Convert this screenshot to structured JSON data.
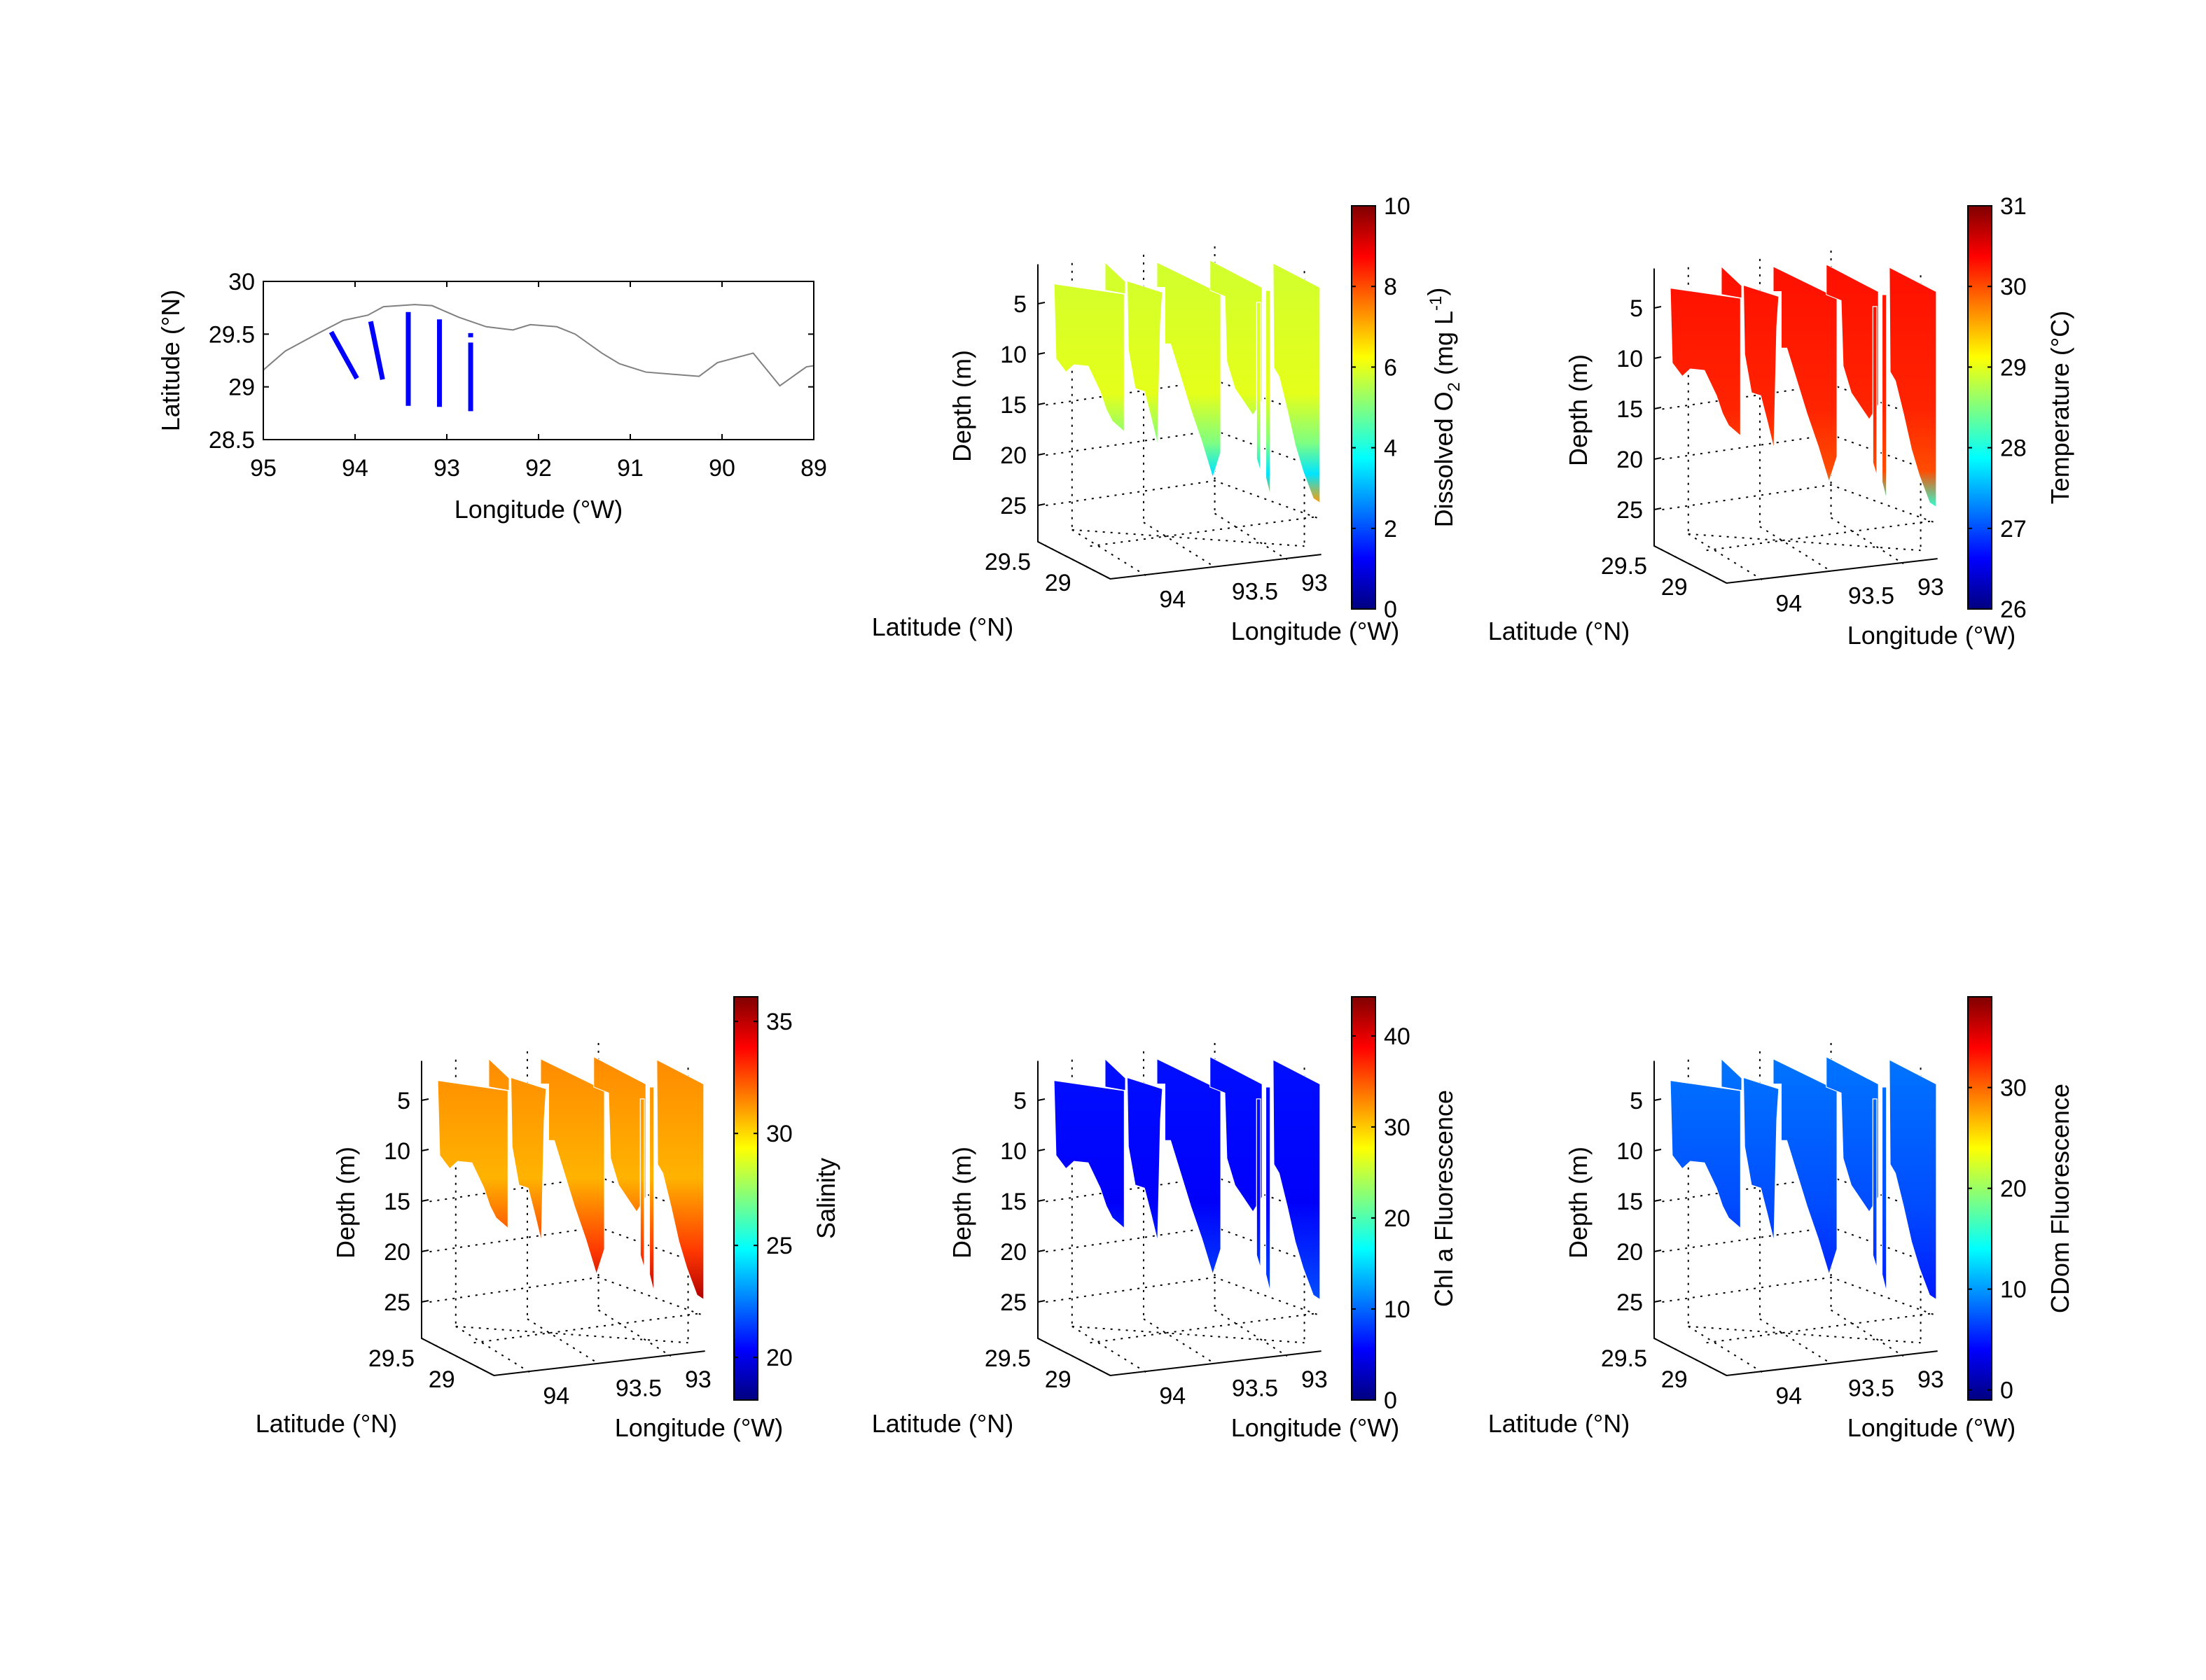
{
  "chart_data": [
    {
      "type": "map",
      "xlabel": "Longitude (°W)",
      "ylabel": "Latitude (°N)",
      "xlim": [
        95,
        89
      ],
      "ylim": [
        28.5,
        30
      ],
      "xticks": [
        "95",
        "94",
        "93",
        "92",
        "91",
        "90",
        "89"
      ],
      "yticks": [
        "28.5",
        "29",
        "29.5",
        "30"
      ],
      "coastline_color": "#808080",
      "transect_color": "#0000ff",
      "coastline": [
        [
          95.0,
          29.16
        ],
        [
          94.76,
          29.34
        ],
        [
          94.42,
          29.5
        ],
        [
          94.13,
          29.63
        ],
        [
          93.86,
          29.68
        ],
        [
          93.69,
          29.76
        ],
        [
          93.35,
          29.78
        ],
        [
          93.16,
          29.77
        ],
        [
          92.87,
          29.66
        ],
        [
          92.57,
          29.57
        ],
        [
          92.28,
          29.54
        ],
        [
          92.09,
          29.59
        ],
        [
          91.8,
          29.57
        ],
        [
          91.6,
          29.5
        ],
        [
          91.31,
          29.32
        ],
        [
          91.12,
          29.22
        ],
        [
          90.83,
          29.14
        ],
        [
          90.54,
          29.12
        ],
        [
          90.25,
          29.1
        ],
        [
          90.05,
          29.23
        ],
        [
          89.66,
          29.32
        ],
        [
          89.37,
          29.01
        ],
        [
          89.08,
          29.19
        ],
        [
          89.0,
          29.2
        ]
      ],
      "transects": [
        [
          [
            94.26,
            29.52
          ],
          [
            93.98,
            29.08
          ]
        ],
        [
          [
            93.83,
            29.62
          ],
          [
            93.7,
            29.07
          ]
        ],
        [
          [
            93.42,
            29.71
          ],
          [
            93.42,
            28.82
          ]
        ],
        [
          [
            93.08,
            29.64
          ],
          [
            93.08,
            28.81
          ]
        ],
        [
          [
            92.74,
            29.51
          ],
          [
            92.74,
            29.47
          ]
        ],
        [
          [
            92.74,
            29.42
          ],
          [
            92.74,
            28.77
          ]
        ]
      ]
    },
    {
      "type": "3d-curtain",
      "variable": "o2",
      "xlabel": "Longitude (°W)",
      "ylabel": "Latitude (°N)",
      "zlabel": "Depth (m)",
      "xticks": [
        "94",
        "93.5",
        "93"
      ],
      "yticks": [
        "29.5",
        "29"
      ],
      "zticks": [
        "5",
        "10",
        "15",
        "20",
        "25"
      ],
      "colorbar": {
        "label_parts": [
          "Dissolved O",
          "2",
          " (mg L",
          "-1",
          ")"
        ],
        "colormap": "jet",
        "range": [
          0,
          10
        ],
        "ticks": [
          "0",
          "2",
          "4",
          "6",
          "8",
          "10"
        ],
        "tick_values": [
          0,
          2,
          4,
          6,
          8,
          10
        ]
      }
    },
    {
      "type": "3d-curtain",
      "variable": "temperature",
      "xlabel": "Longitude (°W)",
      "ylabel": "Latitude (°N)",
      "zlabel": "Depth (m)",
      "xticks": [
        "94",
        "93.5",
        "93"
      ],
      "yticks": [
        "29.5",
        "29"
      ],
      "zticks": [
        "5",
        "10",
        "15",
        "20",
        "25"
      ],
      "colorbar": {
        "label": "Temperature (°C)",
        "colormap": "jet",
        "range": [
          26,
          31
        ],
        "ticks": [
          "26",
          "27",
          "28",
          "29",
          "30",
          "31"
        ],
        "tick_values": [
          26,
          27,
          28,
          29,
          30,
          31
        ]
      }
    },
    {
      "type": "3d-curtain",
      "variable": "salinity",
      "xlabel": "Longitude (°W)",
      "ylabel": "Latitude (°N)",
      "zlabel": "Depth (m)",
      "xticks": [
        "94",
        "93.5",
        "93"
      ],
      "yticks": [
        "29.5",
        "29"
      ],
      "zticks": [
        "5",
        "10",
        "15",
        "20",
        "25"
      ],
      "colorbar": {
        "label": "Salinity",
        "colormap": "jet",
        "range": [
          18.1,
          36.1
        ],
        "ticks": [
          "20",
          "25",
          "30",
          "35"
        ],
        "tick_values": [
          20,
          25,
          30,
          35
        ]
      }
    },
    {
      "type": "3d-curtain",
      "variable": "chl",
      "xlabel": "Longitude (°W)",
      "ylabel": "Latitude (°N)",
      "zlabel": "Depth (m)",
      "xticks": [
        "94",
        "93.5",
        "93"
      ],
      "yticks": [
        "29.5",
        "29"
      ],
      "zticks": [
        "5",
        "10",
        "15",
        "20",
        "25"
      ],
      "colorbar": {
        "label": "Chl a Fluorescence",
        "colormap": "jet",
        "range": [
          0,
          44.3
        ],
        "ticks": [
          "0",
          "10",
          "20",
          "30",
          "40"
        ],
        "tick_values": [
          0,
          10,
          20,
          30,
          40
        ]
      }
    },
    {
      "type": "3d-curtain",
      "variable": "cdom",
      "xlabel": "Longitude (°W)",
      "ylabel": "Latitude (°N)",
      "zlabel": "Depth (m)",
      "xticks": [
        "94",
        "93.5",
        "93"
      ],
      "yticks": [
        "29.5",
        "29"
      ],
      "zticks": [
        "5",
        "10",
        "15",
        "20",
        "25"
      ],
      "colorbar": {
        "label": "CDom Fluorescence",
        "colormap": "jet",
        "range": [
          -1,
          39
        ],
        "ticks": [
          "0",
          "10",
          "20",
          "30"
        ],
        "tick_values": [
          0,
          10,
          20,
          30
        ]
      }
    }
  ]
}
